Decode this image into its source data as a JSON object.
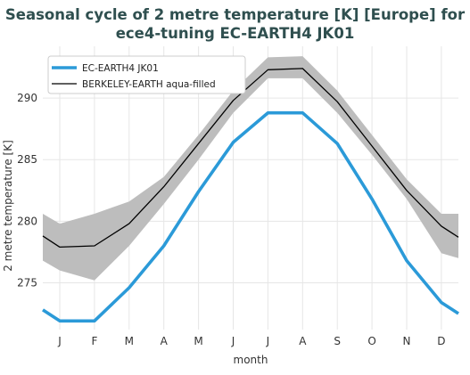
{
  "chart_data": {
    "type": "line",
    "title_line1": "Seasonal cycle of 2 metre temperature [K] [Europe] for",
    "title_line2": "ece4-tuning EC-EARTH4 JK01",
    "xlabel": "month",
    "ylabel": "2 metre temperature [K]",
    "categories": [
      "J",
      "F",
      "M",
      "A",
      "M",
      "J",
      "J",
      "A",
      "S",
      "O",
      "N",
      "D"
    ],
    "yticks": [
      275,
      280,
      285,
      290
    ],
    "ylim": [
      271.2,
      294.2
    ],
    "grid": true,
    "legend_position": "top-left",
    "series": [
      {
        "name": "EC-EARTH4 JK01",
        "color": "#2b9ad8",
        "values": [
          271.9,
          271.9,
          274.6,
          278.0,
          282.4,
          286.4,
          288.8,
          288.8,
          286.3,
          281.8,
          276.8,
          273.4
        ]
      },
      {
        "name": "BERKELEY-EARTH aqua-filled",
        "color": "#000000",
        "values": [
          277.9,
          278.0,
          279.8,
          282.8,
          286.3,
          289.8,
          292.3,
          292.4,
          289.7,
          286.1,
          282.5,
          279.6
        ]
      }
    ],
    "edge_values": {
      "ec_left": 272.8,
      "ec_right": 272.5,
      "be_left": 278.8,
      "be_right": 278.7
    },
    "band": {
      "color": "#bdbdbd",
      "upper": [
        279.8,
        280.6,
        281.6,
        283.6,
        287.0,
        290.6,
        293.3,
        293.4,
        290.6,
        287.0,
        283.4,
        280.6
      ],
      "lower": [
        276.0,
        275.2,
        278.0,
        281.4,
        285.0,
        288.8,
        291.6,
        291.6,
        288.8,
        285.4,
        281.8,
        277.4
      ],
      "upper_left": 280.6,
      "upper_right": 280.6,
      "lower_left": 276.8,
      "lower_right": 277.0
    }
  }
}
